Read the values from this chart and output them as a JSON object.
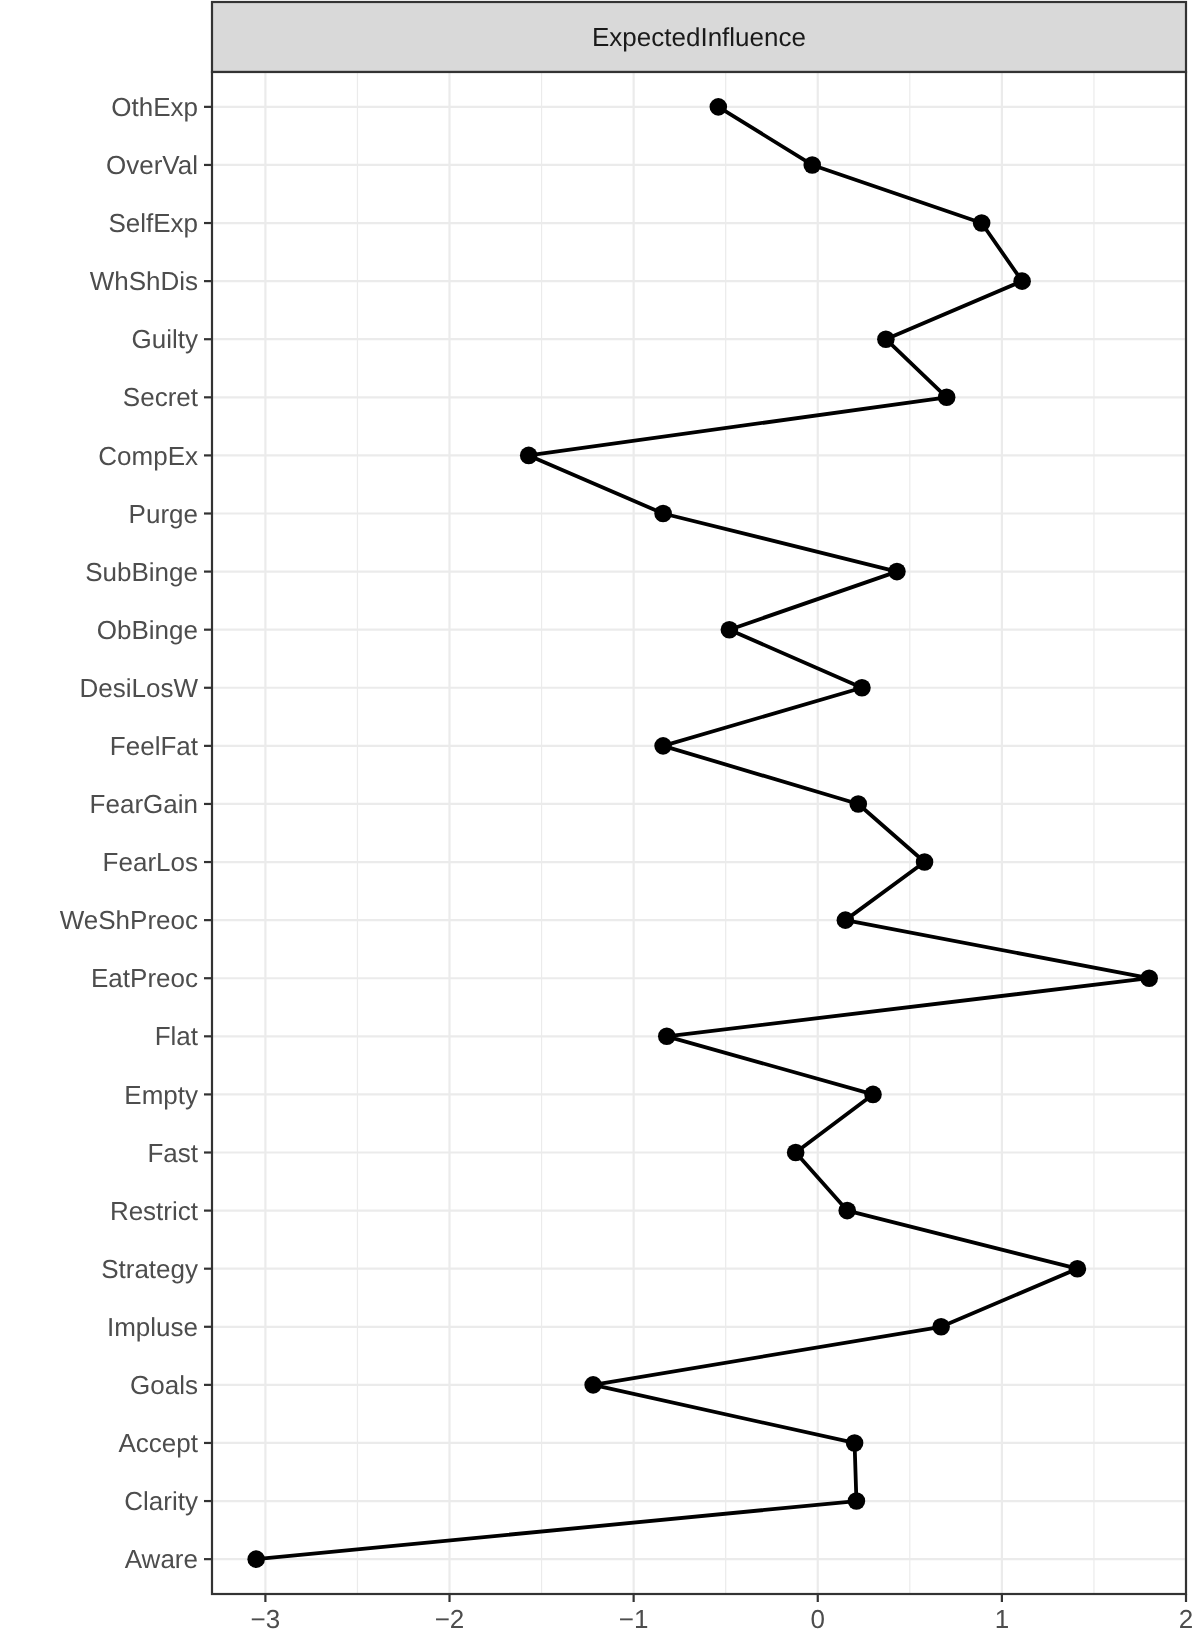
{
  "chart_data": {
    "type": "line",
    "title": "ExpectedInfluence",
    "orientation": "horizontal",
    "categories": [
      "OthExp",
      "OverVal",
      "SelfExp",
      "WhShDis",
      "Guilty",
      "Secret",
      "CompEx",
      "Purge",
      "SubBinge",
      "ObBinge",
      "DesiLosW",
      "FeelFat",
      "FearGain",
      "FearLos",
      "WeShPreoc",
      "EatPreoc",
      "Flat",
      "Empty",
      "Fast",
      "Restrict",
      "Strategy",
      "Impluse",
      "Goals",
      "Accept",
      "Clarity",
      "Aware"
    ],
    "series": [
      {
        "color": "#000000",
        "values": [
          -0.54,
          -0.03,
          0.89,
          1.11,
          0.37,
          0.7,
          -1.57,
          -0.84,
          0.43,
          -0.48,
          0.24,
          -0.84,
          0.22,
          0.58,
          0.15,
          1.8,
          -0.82,
          0.3,
          -0.12,
          0.16,
          1.41,
          0.67,
          -1.22,
          0.2,
          0.21,
          -3.05
        ]
      }
    ],
    "xlim": [
      -3.29,
      2.0
    ],
    "xticks": [
      {
        "value": -3,
        "label": "−3"
      },
      {
        "value": -2.5,
        "label": null
      },
      {
        "value": -2,
        "label": "−2"
      },
      {
        "value": -1.5,
        "label": null
      },
      {
        "value": -1,
        "label": "−1"
      },
      {
        "value": -0.5,
        "label": null
      },
      0,
      {
        "value": 0.5,
        "label": null
      },
      1,
      {
        "value": 1.5,
        "label": null
      },
      2
    ],
    "grid": true,
    "marker": "circle",
    "line_style": "solid"
  }
}
